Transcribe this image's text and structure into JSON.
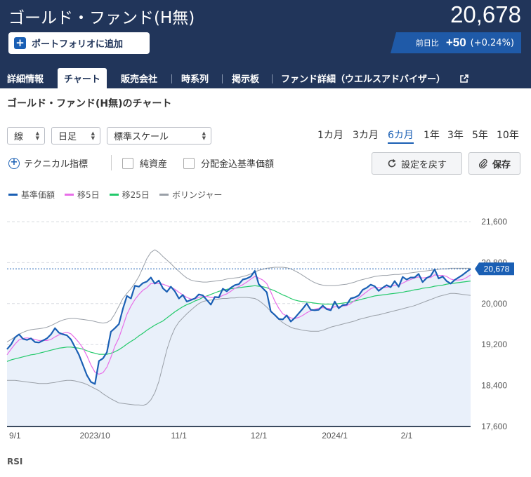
{
  "header": {
    "fund_name": "ゴールド・ファンド(H無)",
    "price": "20,678",
    "add_button": "ポートフォリオに追加",
    "change_label": "前日比",
    "change_value": "+50",
    "change_percent": "(+0.24%)"
  },
  "tabs": [
    {
      "label": "詳細情報"
    },
    {
      "label": "チャート"
    },
    {
      "label": "販売会社"
    },
    {
      "label": "時系列"
    },
    {
      "label": "掲示板"
    },
    {
      "label": "ファンド詳細（ウエルスアドバイザー）"
    }
  ],
  "section_title": "ゴールド・ファンド(H無)のチャート",
  "controls": {
    "chart_type": "線",
    "interval": "日足",
    "scale": "標準スケール",
    "periods": [
      "1カ月",
      "3カ月",
      "6カ月",
      "1年",
      "3年",
      "5年",
      "10年"
    ],
    "active_period": "6カ月",
    "technical": "テクニカル指標",
    "net_assets": "純資産",
    "dividend_adjusted": "分配金込基準価額",
    "reset": "設定を戻す",
    "save": "保存"
  },
  "legend": [
    {
      "label": "基準価額",
      "color": "#1a5fb4"
    },
    {
      "label": "移5日",
      "color": "#e86ee8"
    },
    {
      "label": "移25日",
      "color": "#22c96a"
    },
    {
      "label": "ボリンジャー",
      "color": "#9aa0a8"
    }
  ],
  "current_label": "20,678",
  "rsi_label": "RSI",
  "chart_data": {
    "type": "line",
    "ylim": [
      17600,
      21600
    ],
    "y_ticks": [
      "21,600",
      "20,800",
      "20,000",
      "19,200",
      "18,400",
      "17,600"
    ],
    "y_tick_values": [
      21600,
      20800,
      20000,
      19200,
      18400,
      17600
    ],
    "x_tick_labels": [
      "9/1",
      "2023/10",
      "11/1",
      "12/1",
      "2024/1",
      "2/1"
    ],
    "x_tick_index": [
      2,
      22,
      43,
      63,
      82,
      100
    ],
    "series": [
      {
        "name": "基準価額",
        "color": "#1a5fb4",
        "values": [
          19110,
          19200,
          19340,
          19400,
          19310,
          19290,
          19320,
          19250,
          19240,
          19280,
          19320,
          19400,
          19520,
          19430,
          19400,
          19380,
          19300,
          19150,
          19000,
          18800,
          18600,
          18470,
          18430,
          18880,
          18930,
          19050,
          19450,
          19520,
          19600,
          19900,
          20150,
          20100,
          20350,
          20330,
          20400,
          20430,
          20510,
          20390,
          20450,
          20300,
          20230,
          20330,
          20240,
          20100,
          20170,
          20040,
          20070,
          20100,
          20180,
          20160,
          20070,
          19980,
          20130,
          20120,
          20290,
          20240,
          20310,
          20360,
          20380,
          20470,
          20490,
          20530,
          20640,
          20380,
          20300,
          20220,
          19850,
          19780,
          19700,
          19690,
          19770,
          19650,
          19720,
          19810,
          19900,
          20000,
          19880,
          19870,
          19880,
          19960,
          19890,
          19870,
          20040,
          19910,
          19970,
          19980,
          20100,
          20120,
          20160,
          20270,
          20310,
          20370,
          20340,
          20250,
          20310,
          20360,
          20320,
          20440,
          20330,
          20520,
          20470,
          20510,
          20510,
          20580,
          20420,
          20500,
          20540,
          20670,
          20490,
          20530,
          20440,
          20390,
          20460,
          20510,
          20560,
          20620,
          20678
        ]
      },
      {
        "name": "移5日",
        "color": "#e86ee8",
        "values": [
          19000,
          19110,
          19210,
          19290,
          19320,
          19330,
          19320,
          19300,
          19280,
          19280,
          19280,
          19300,
          19350,
          19390,
          19420,
          19440,
          19410,
          19330,
          19240,
          19130,
          18980,
          18800,
          18660,
          18620,
          18650,
          18760,
          18950,
          19170,
          19330,
          19560,
          19790,
          19950,
          20080,
          20180,
          20260,
          20310,
          20390,
          20390,
          20390,
          20380,
          20350,
          20320,
          20280,
          20220,
          20170,
          20120,
          20090,
          20090,
          20120,
          20140,
          20140,
          20120,
          20120,
          20120,
          20160,
          20190,
          20240,
          20300,
          20330,
          20370,
          20420,
          20480,
          20530,
          20500,
          20460,
          20390,
          20230,
          20050,
          19910,
          19800,
          19760,
          19720,
          19710,
          19730,
          19770,
          19820,
          19860,
          19890,
          19910,
          19920,
          19910,
          19900,
          19940,
          19940,
          19950,
          19960,
          20000,
          20060,
          20110,
          20170,
          20230,
          20290,
          20320,
          20310,
          20310,
          20320,
          20330,
          20360,
          20360,
          20400,
          20440,
          20470,
          20500,
          20520,
          20500,
          20510,
          20510,
          20560,
          20550,
          20550,
          20530,
          20480,
          20460,
          20460,
          20470,
          20510,
          20560
        ]
      },
      {
        "name": "移25日",
        "color": "#22c96a",
        "values": [
          18870,
          18900,
          18920,
          18940,
          18960,
          18980,
          19000,
          19010,
          19030,
          19050,
          19070,
          19090,
          19110,
          19130,
          19140,
          19150,
          19150,
          19140,
          19130,
          19110,
          19080,
          19050,
          19030,
          19010,
          19010,
          19010,
          19030,
          19060,
          19100,
          19150,
          19210,
          19260,
          19310,
          19370,
          19420,
          19480,
          19530,
          19580,
          19620,
          19660,
          19720,
          19780,
          19840,
          19890,
          19940,
          19980,
          20010,
          20050,
          20080,
          20120,
          20150,
          20180,
          20210,
          20240,
          20260,
          20280,
          20290,
          20300,
          20310,
          20320,
          20330,
          20340,
          20350,
          20340,
          20330,
          20310,
          20280,
          20250,
          20210,
          20170,
          20140,
          20100,
          20070,
          20050,
          20040,
          20030,
          20020,
          20010,
          20000,
          19990,
          19990,
          19990,
          19990,
          20000,
          20010,
          20020,
          20030,
          20050,
          20070,
          20090,
          20110,
          20130,
          20150,
          20160,
          20170,
          20180,
          20190,
          20200,
          20210,
          20220,
          20240,
          20250,
          20270,
          20280,
          20300,
          20310,
          20320,
          20340,
          20350,
          20360,
          20380,
          20390,
          20400,
          20410,
          20420,
          20430,
          20440
        ]
      },
      {
        "name": "ボリンジャー上",
        "color": "#9aa0a8",
        "values": [
          19250,
          19300,
          19350,
          19400,
          19440,
          19470,
          19490,
          19500,
          19510,
          19520,
          19540,
          19570,
          19610,
          19650,
          19680,
          19700,
          19710,
          19710,
          19700,
          19690,
          19680,
          19670,
          19650,
          19630,
          19620,
          19630,
          19680,
          19800,
          19950,
          20100,
          20200,
          20290,
          20400,
          20530,
          20700,
          20880,
          21000,
          21050,
          21000,
          20920,
          20850,
          20780,
          20700,
          20630,
          20560,
          20500,
          20460,
          20440,
          20430,
          20420,
          20420,
          20430,
          20440,
          20450,
          20460,
          20480,
          20490,
          20500,
          20510,
          20530,
          20550,
          20580,
          20620,
          20650,
          20670,
          20690,
          20700,
          20710,
          20710,
          20710,
          20700,
          20680,
          20640,
          20600,
          20550,
          20500,
          20450,
          20410,
          20380,
          20360,
          20350,
          20350,
          20350,
          20360,
          20370,
          20380,
          20400,
          20420,
          20450,
          20470,
          20490,
          20510,
          20530,
          20540,
          20550,
          20550,
          20560,
          20570,
          20570,
          20580,
          20590,
          20600,
          20610,
          20620,
          20630,
          20640,
          20650,
          20660,
          20670,
          20680,
          20680,
          20690,
          20690,
          20690,
          20690,
          20690,
          20690
        ]
      },
      {
        "name": "ボリンジャー下",
        "color": "#9aa0a8",
        "values": [
          18500,
          18500,
          18500,
          18490,
          18480,
          18470,
          18460,
          18450,
          18440,
          18440,
          18440,
          18450,
          18460,
          18480,
          18490,
          18500,
          18500,
          18490,
          18470,
          18450,
          18420,
          18380,
          18340,
          18300,
          18240,
          18190,
          18140,
          18100,
          18060,
          18050,
          18040,
          18030,
          18020,
          18020,
          18010,
          18040,
          18120,
          18260,
          18480,
          18790,
          19100,
          19340,
          19520,
          19640,
          19720,
          19800,
          19870,
          19940,
          20000,
          20040,
          20060,
          20070,
          20080,
          20090,
          20100,
          20100,
          20110,
          20110,
          20120,
          20120,
          20120,
          20110,
          20100,
          20060,
          20000,
          19930,
          19850,
          19770,
          19690,
          19630,
          19580,
          19540,
          19510,
          19500,
          19480,
          19470,
          19460,
          19460,
          19460,
          19480,
          19510,
          19540,
          19560,
          19580,
          19600,
          19620,
          19640,
          19660,
          19690,
          19710,
          19730,
          19750,
          19770,
          19780,
          19800,
          19820,
          19840,
          19860,
          19880,
          19900,
          19920,
          19940,
          19960,
          19990,
          20020,
          20050,
          20080,
          20110,
          20140,
          20160,
          20180,
          20200,
          20200,
          20190,
          20180,
          20170,
          20160
        ]
      }
    ]
  }
}
